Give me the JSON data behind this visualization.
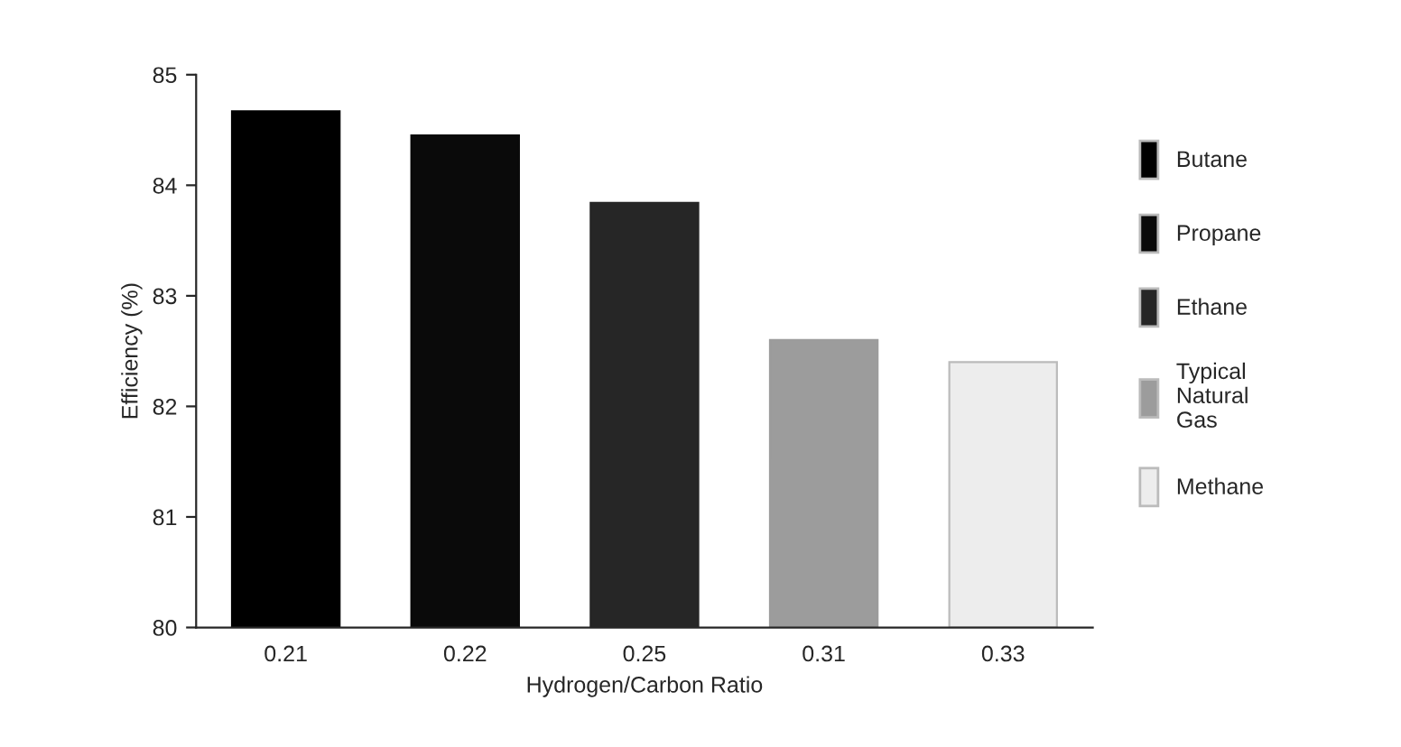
{
  "chart_data": {
    "type": "bar",
    "xlabel": "Hydrogen/Carbon Ratio",
    "ylabel": "Efficiency (%)",
    "categories": [
      "0.21",
      "0.22",
      "0.25",
      "0.31",
      "0.33"
    ],
    "series": [
      {
        "name": "Butane",
        "color": "#000000",
        "values": [
          84.67,
          null,
          null,
          null,
          null
        ]
      },
      {
        "name": "Propane",
        "color": "#0a0a0a",
        "values": [
          null,
          84.45,
          null,
          null,
          null
        ]
      },
      {
        "name": "Ethane",
        "color": "#262626",
        "values": [
          null,
          null,
          83.84,
          null,
          null
        ]
      },
      {
        "name": "Typical\nNatural\nGas",
        "color": "#9c9c9c",
        "values": [
          null,
          null,
          null,
          82.6,
          null
        ]
      },
      {
        "name": "Methane",
        "color": "#ededed",
        "values": [
          null,
          null,
          null,
          null,
          82.4
        ]
      }
    ],
    "ylim": [
      80,
      85
    ],
    "yticks": [
      80,
      81,
      82,
      83,
      84,
      85
    ],
    "grid": false,
    "legend": "right"
  }
}
